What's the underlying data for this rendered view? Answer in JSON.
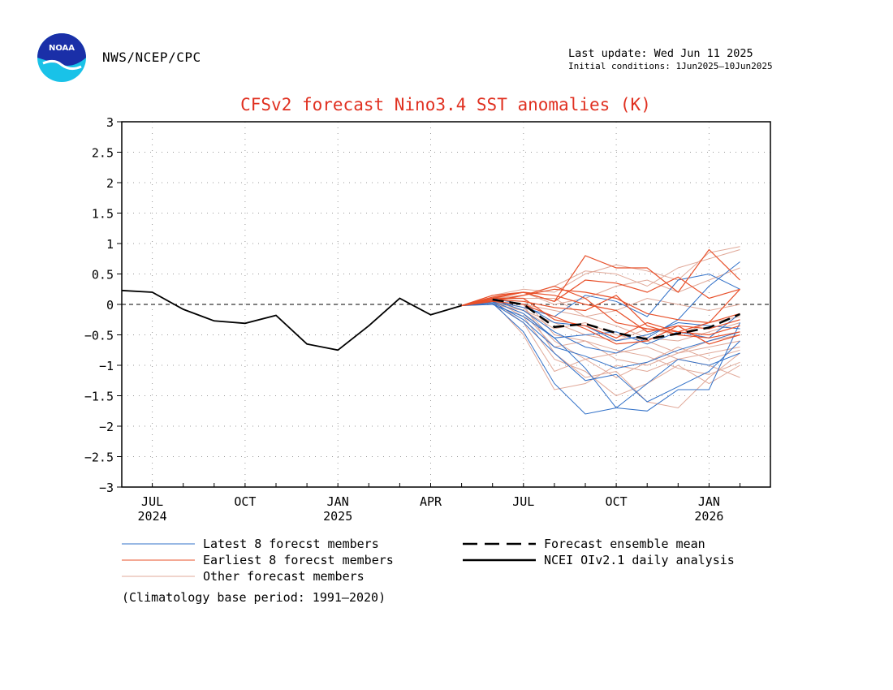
{
  "header": {
    "agency": "NWS/NCEP/CPC",
    "last_update": "Last update: Wed Jun 11 2025",
    "initial_conditions": "Initial conditions: 1Jun2025—10Jun2025",
    "logo_text": "NOAA"
  },
  "colors": {
    "latest": "#3070c8",
    "earliest": "#e8502a",
    "other": "#e0a898",
    "mean": "#000000",
    "observed": "#000000",
    "title": "#e03020"
  },
  "chart_data": {
    "type": "line",
    "title": "CFSv2 forecast Nino3.4 SST anomalies (K)",
    "xlim": [
      0,
      21
    ],
    "ylim": [
      -3,
      3
    ],
    "yticks": [
      "3",
      "2.5",
      "2",
      "1.5",
      "1",
      "0.5",
      "0",
      "−0.5",
      "−1",
      "−1.5",
      "−2",
      "−2.5",
      "−3"
    ],
    "yticks_values": [
      3,
      2.5,
      2,
      1.5,
      1,
      0.5,
      0,
      -0.5,
      -1,
      -1.5,
      -2,
      -2.5,
      -3
    ],
    "xticks": [
      {
        "x": 1,
        "label": "JUL",
        "year": "2024"
      },
      {
        "x": 4,
        "label": "OCT",
        "year": ""
      },
      {
        "x": 7,
        "label": "JAN",
        "year": "2025"
      },
      {
        "x": 10,
        "label": "APR",
        "year": ""
      },
      {
        "x": 13,
        "label": "JUL",
        "year": ""
      },
      {
        "x": 16,
        "label": "OCT",
        "year": ""
      },
      {
        "x": 19,
        "label": "JAN",
        "year": "2026"
      }
    ],
    "grid": true,
    "zero_line": true,
    "observed": {
      "name": "NCEI OIv2.1 daily analysis",
      "x": [
        0,
        1,
        2,
        3,
        4,
        5,
        6,
        7,
        8,
        9,
        10,
        11
      ],
      "y": [
        0.23,
        0.2,
        -0.08,
        -0.27,
        -0.31,
        -0.18,
        -0.65,
        -0.75,
        -0.35,
        0.1,
        -0.17,
        -0.02
      ]
    },
    "mean": {
      "name": "Forecast ensemble mean",
      "x": [
        12,
        13,
        14,
        15,
        16,
        17,
        18,
        19,
        20
      ],
      "y": [
        0.08,
        0.0,
        -0.37,
        -0.32,
        -0.47,
        -0.57,
        -0.48,
        -0.38,
        -0.16
      ]
    },
    "forecast_x": [
      11,
      12,
      13,
      14,
      15,
      16,
      17,
      18,
      19,
      20
    ],
    "latest_members": [
      {
        "name": "Latest 8 forecst members",
        "y": [
          -0.02,
          0.02,
          -0.3,
          -0.8,
          -1.25,
          -1.15,
          -1.6,
          -1.35,
          -1.1,
          -0.6
        ]
      },
      {
        "y": [
          -0.02,
          0.05,
          -0.15,
          -0.55,
          -1.05,
          -1.7,
          -1.75,
          -1.4,
          -1.4,
          -0.3
        ]
      },
      {
        "y": [
          -0.02,
          0.02,
          -0.45,
          -1.3,
          -1.8,
          -1.7,
          -1.3,
          -0.9,
          -1.0,
          -0.8
        ]
      },
      {
        "y": [
          -0.02,
          0.08,
          -0.1,
          -0.45,
          -0.7,
          -0.8,
          -0.55,
          -0.25,
          0.3,
          0.7
        ]
      },
      {
        "y": [
          -0.02,
          0.1,
          0.0,
          -0.3,
          -0.35,
          -0.6,
          -0.5,
          -0.3,
          -0.35,
          -0.4
        ]
      },
      {
        "y": [
          -0.02,
          0.0,
          -0.2,
          -0.55,
          -0.5,
          -0.45,
          -0.65,
          -0.45,
          -0.55,
          -0.15
        ]
      },
      {
        "y": [
          -0.02,
          0.06,
          -0.05,
          -0.2,
          0.15,
          0.05,
          -0.2,
          0.4,
          0.5,
          0.25
        ]
      },
      {
        "y": [
          -0.02,
          0.04,
          -0.25,
          -0.7,
          -0.85,
          -1.05,
          -0.95,
          -0.75,
          -0.6,
          -0.45
        ]
      }
    ],
    "earliest_members": [
      {
        "name": "Earliest 8 forecst members",
        "y": [
          -0.02,
          0.15,
          0.2,
          0.05,
          0.8,
          0.6,
          0.6,
          0.2,
          0.9,
          0.4
        ]
      },
      {
        "y": [
          -0.02,
          0.1,
          0.2,
          0.05,
          0.4,
          0.35,
          0.2,
          0.45,
          0.1,
          0.25
        ]
      },
      {
        "y": [
          -0.02,
          0.05,
          0.15,
          0.25,
          0.2,
          0.1,
          -0.15,
          -0.25,
          -0.3,
          -0.15
        ]
      },
      {
        "y": [
          -0.02,
          0.08,
          0.05,
          -0.05,
          -0.1,
          0.15,
          -0.35,
          -0.5,
          -0.55,
          -0.45
        ]
      },
      {
        "y": [
          -0.02,
          0.12,
          0.2,
          0.15,
          0.0,
          -0.1,
          -0.45,
          -0.35,
          -0.4,
          -0.25
        ]
      },
      {
        "y": [
          -0.02,
          0.1,
          0.1,
          -0.25,
          -0.35,
          -0.55,
          -0.3,
          -0.45,
          -0.3,
          0.25
        ]
      },
      {
        "y": [
          -0.02,
          0.05,
          0.0,
          -0.2,
          -0.4,
          -0.65,
          -0.6,
          -0.35,
          -0.65,
          -0.5
        ]
      },
      {
        "y": [
          -0.02,
          0.06,
          0.15,
          0.3,
          0.1,
          -0.3,
          -0.4,
          -0.45,
          -0.5,
          -0.35
        ]
      }
    ],
    "other_members": [
      {
        "name": "Other forecast members",
        "y": [
          -0.02,
          0.1,
          0.0,
          -0.8,
          -1.2,
          -1.1,
          -1.6,
          -1.7,
          -1.2,
          -0.8
        ]
      },
      {
        "y": [
          -0.02,
          0.05,
          -0.5,
          -1.4,
          -1.3,
          -1.0,
          -1.1,
          -0.9,
          -1.0,
          -1.2
        ]
      },
      {
        "y": [
          -0.02,
          0.08,
          -0.2,
          -0.9,
          -1.1,
          -1.5,
          -1.3,
          -1.0,
          -1.3,
          -1.0
        ]
      },
      {
        "y": [
          -0.02,
          0.12,
          0.1,
          -0.5,
          -0.6,
          -0.9,
          -1.0,
          -0.8,
          -0.7,
          -0.6
        ]
      },
      {
        "y": [
          -0.02,
          0.15,
          0.25,
          0.2,
          0.5,
          0.65,
          0.55,
          0.4,
          0.85,
          0.95
        ]
      },
      {
        "y": [
          -0.02,
          0.1,
          0.15,
          0.3,
          0.55,
          0.5,
          0.3,
          0.6,
          0.75,
          0.9
        ]
      },
      {
        "y": [
          -0.02,
          0.0,
          -0.1,
          -0.3,
          -0.5,
          -0.6,
          -0.4,
          -0.5,
          -0.3,
          -0.2
        ]
      },
      {
        "y": [
          -0.02,
          0.05,
          -0.05,
          -0.6,
          -0.9,
          -0.8,
          -0.7,
          -0.9,
          -0.8,
          -0.7
        ]
      },
      {
        "y": [
          -0.02,
          0.1,
          0.0,
          -0.1,
          -0.2,
          -0.1,
          0.1,
          0.0,
          -0.1,
          0.0
        ]
      },
      {
        "y": [
          -0.02,
          0.06,
          -0.3,
          -1.1,
          -0.9,
          -1.2,
          -0.95,
          -0.7,
          -0.9,
          -0.75
        ]
      },
      {
        "y": [
          -0.02,
          0.1,
          0.2,
          0.0,
          0.1,
          0.3,
          0.4,
          0.2,
          0.4,
          0.6
        ]
      },
      {
        "y": [
          -0.02,
          0.05,
          -0.1,
          -0.4,
          -0.3,
          -0.5,
          -0.6,
          -0.8,
          -0.6,
          -0.5
        ]
      },
      {
        "y": [
          -0.02,
          0.08,
          0.1,
          0.1,
          -0.2,
          -0.35,
          -0.55,
          -0.6,
          -0.45,
          -0.3
        ]
      },
      {
        "y": [
          -0.02,
          0.04,
          -0.15,
          -0.7,
          -0.6,
          -0.75,
          -0.85,
          -1.05,
          -1.15,
          -0.95
        ]
      }
    ]
  },
  "legend": {
    "latest": "Latest 8 forecst members",
    "earliest": "Earliest 8 forecst members",
    "other": "Other forecast members",
    "mean": "Forecast ensemble mean",
    "observed": "NCEI OIv2.1 daily analysis"
  },
  "footnote": "(Climatology base period: 1991—2020)"
}
